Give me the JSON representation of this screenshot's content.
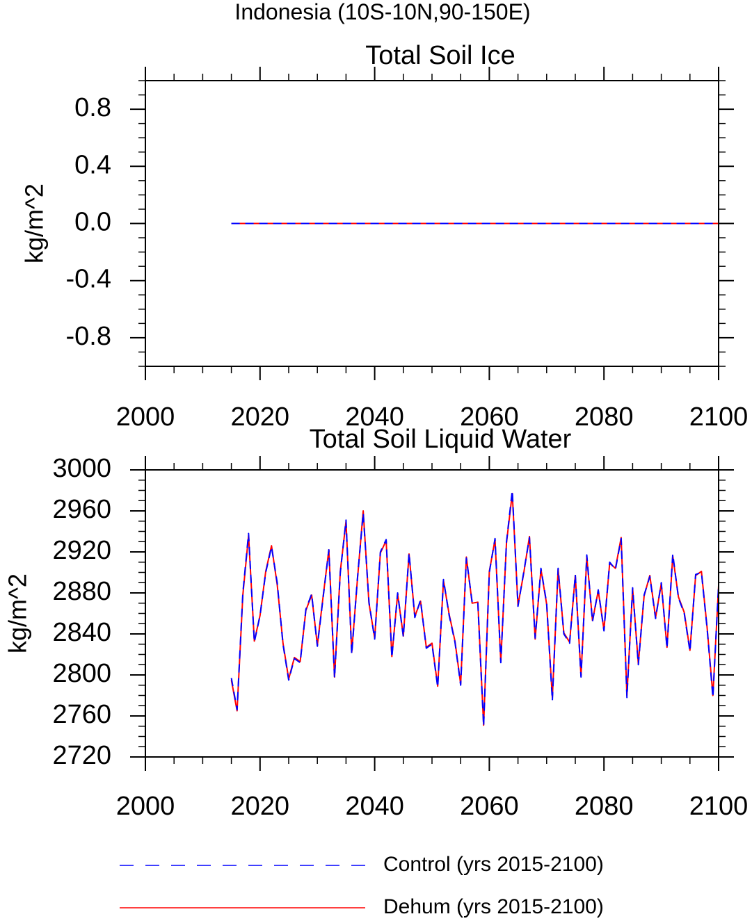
{
  "figure_title": "Indonesia (10S-10N,90-150E)",
  "chart_data": [
    {
      "type": "line",
      "title": "Total Soil Ice",
      "xlabel": "",
      "ylabel": "kg/m^2",
      "xlim": [
        2000,
        2100
      ],
      "ylim": [
        -1.0,
        1.0
      ],
      "x_ticks": [
        2000,
        2020,
        2040,
        2060,
        2080,
        2100
      ],
      "x_tick_labels": [
        "2000",
        "2020",
        "2040",
        "2060",
        "2080",
        "2100"
      ],
      "y_ticks": [
        0.8,
        0.4,
        0.0,
        -0.4,
        -0.8
      ],
      "y_tick_labels": [
        "0.8",
        "0.4",
        "0.0",
        "-0.4",
        "-0.8"
      ],
      "x": [
        2015,
        2100
      ],
      "series": [
        {
          "name": "Control (yrs 2015-2100)",
          "color": "#0000ff",
          "dash": "dashed",
          "values": [
            0.0,
            0.0
          ]
        },
        {
          "name": "Dehum (yrs 2015-2100)",
          "color": "#ff0000",
          "dash": "solid",
          "values": [
            0.0,
            0.0
          ]
        }
      ]
    },
    {
      "type": "line",
      "title": "Total Soil Liquid Water",
      "xlabel": "",
      "ylabel": "kg/m^2",
      "xlim": [
        2000,
        2100
      ],
      "ylim": [
        2720,
        3000
      ],
      "x_ticks": [
        2000,
        2020,
        2040,
        2060,
        2080,
        2100
      ],
      "x_tick_labels": [
        "2000",
        "2020",
        "2040",
        "2060",
        "2080",
        "2100"
      ],
      "y_ticks": [
        3000,
        2960,
        2920,
        2880,
        2840,
        2800,
        2760,
        2720
      ],
      "y_tick_labels": [
        "3000",
        "2960",
        "2920",
        "2880",
        "2840",
        "2800",
        "2760",
        "2720"
      ],
      "x_start": 2015,
      "x_step": 1,
      "series": [
        {
          "name": "Control (yrs 2015-2100)",
          "color": "#0000ff",
          "dash": "dashed",
          "values": [
            2797,
            2766,
            2880,
            2938,
            2832,
            2858,
            2900,
            2925,
            2890,
            2830,
            2795,
            2816,
            2812,
            2864,
            2879,
            2828,
            2875,
            2922,
            2797,
            2900,
            2951,
            2820,
            2895,
            2958,
            2871,
            2835,
            2920,
            2932,
            2817,
            2880,
            2837,
            2919,
            2856,
            2873,
            2826,
            2830,
            2788,
            2893,
            2858,
            2832,
            2790,
            2914,
            2871,
            2870,
            2750,
            2900,
            2933,
            2812,
            2930,
            2980,
            2867,
            2900,
            2934,
            2836,
            2904,
            2870,
            2775,
            2904,
            2840,
            2831,
            2898,
            2798,
            2917,
            2852,
            2883,
            2843,
            2910,
            2903,
            2933,
            2778,
            2885,
            2810,
            2878,
            2896,
            2855,
            2890,
            2826,
            2918,
            2875,
            2860,
            2823,
            2898,
            2900,
            2845,
            2778,
            2888
          ]
        },
        {
          "name": "Dehum (yrs 2015-2100)",
          "color": "#ff0000",
          "dash": "solid",
          "values": [
            2795,
            2765,
            2878,
            2936,
            2833,
            2858,
            2901,
            2926,
            2888,
            2831,
            2796,
            2817,
            2813,
            2863,
            2878,
            2829,
            2876,
            2922,
            2798,
            2901,
            2950,
            2822,
            2894,
            2960,
            2870,
            2836,
            2919,
            2931,
            2818,
            2879,
            2838,
            2918,
            2857,
            2872,
            2827,
            2831,
            2789,
            2892,
            2859,
            2833,
            2791,
            2915,
            2870,
            2871,
            2751,
            2901,
            2932,
            2813,
            2929,
            2977,
            2868,
            2899,
            2935,
            2835,
            2903,
            2869,
            2778,
            2903,
            2841,
            2832,
            2897,
            2799,
            2915,
            2853,
            2882,
            2844,
            2909,
            2904,
            2934,
            2780,
            2884,
            2811,
            2877,
            2897,
            2856,
            2889,
            2827,
            2916,
            2876,
            2861,
            2824,
            2897,
            2901,
            2846,
            2780,
            2887
          ]
        }
      ]
    }
  ],
  "legend": {
    "items": [
      {
        "label": "Control (yrs 2015-2100)",
        "color": "#0000ff",
        "dash": "dashed"
      },
      {
        "label": "Dehum (yrs 2015-2100)",
        "color": "#ff0000",
        "dash": "solid"
      }
    ]
  }
}
